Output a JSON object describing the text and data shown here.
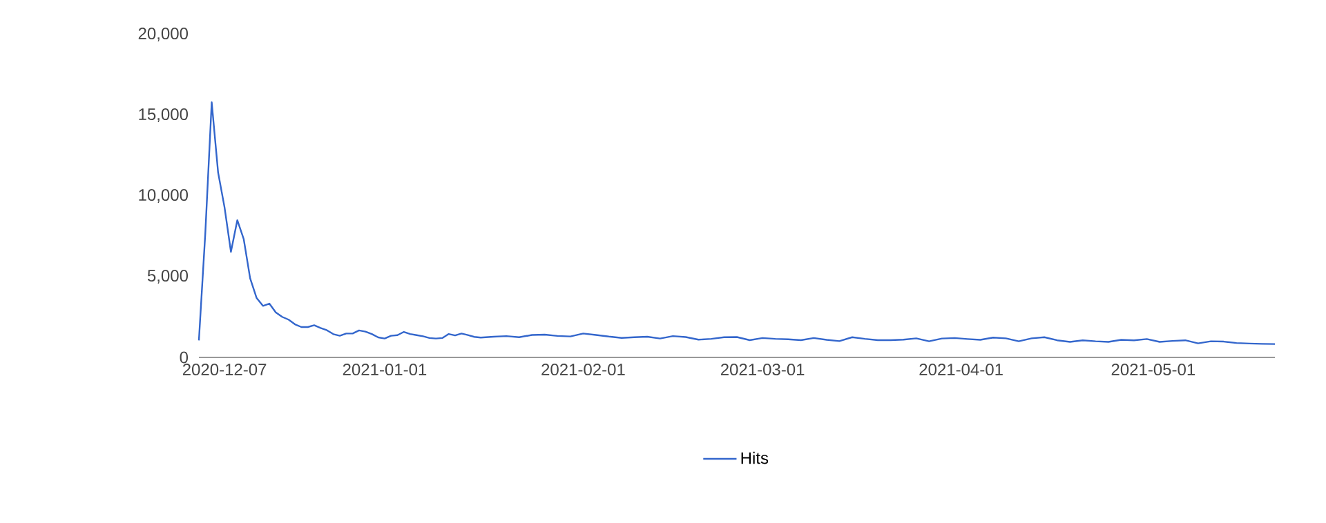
{
  "chart_data": {
    "type": "line",
    "x": [
      "2020-12-03",
      "2020-12-04",
      "2020-12-05",
      "2020-12-06",
      "2020-12-07",
      "2020-12-08",
      "2020-12-09",
      "2020-12-10",
      "2020-12-11",
      "2020-12-12",
      "2020-12-13",
      "2020-12-14",
      "2020-12-15",
      "2020-12-16",
      "2020-12-17",
      "2020-12-18",
      "2020-12-19",
      "2020-12-20",
      "2020-12-21",
      "2020-12-22",
      "2020-12-23",
      "2020-12-24",
      "2020-12-25",
      "2020-12-26",
      "2020-12-27",
      "2020-12-28",
      "2020-12-29",
      "2020-12-30",
      "2020-12-31",
      "2021-01-01",
      "2021-01-02",
      "2021-01-03",
      "2021-01-04",
      "2021-01-05",
      "2021-01-06",
      "2021-01-07",
      "2021-01-08",
      "2021-01-09",
      "2021-01-10",
      "2021-01-11",
      "2021-01-12",
      "2021-01-13",
      "2021-01-14",
      "2021-01-15",
      "2021-01-16",
      "2021-01-18",
      "2021-01-20",
      "2021-01-22",
      "2021-01-24",
      "2021-01-26",
      "2021-01-28",
      "2021-01-30",
      "2021-02-01",
      "2021-02-03",
      "2021-02-05",
      "2021-02-07",
      "2021-02-09",
      "2021-02-11",
      "2021-02-13",
      "2021-02-15",
      "2021-02-17",
      "2021-02-19",
      "2021-02-21",
      "2021-02-23",
      "2021-02-25",
      "2021-02-27",
      "2021-03-01",
      "2021-03-03",
      "2021-03-05",
      "2021-03-07",
      "2021-03-09",
      "2021-03-11",
      "2021-03-13",
      "2021-03-15",
      "2021-03-17",
      "2021-03-19",
      "2021-03-21",
      "2021-03-23",
      "2021-03-25",
      "2021-03-27",
      "2021-03-29",
      "2021-03-31",
      "2021-04-02",
      "2021-04-04",
      "2021-04-06",
      "2021-04-08",
      "2021-04-10",
      "2021-04-12",
      "2021-04-14",
      "2021-04-16",
      "2021-04-18",
      "2021-04-20",
      "2021-04-22",
      "2021-04-24",
      "2021-04-26",
      "2021-04-28",
      "2021-04-30",
      "2021-05-02",
      "2021-05-04",
      "2021-05-06",
      "2021-05-08",
      "2021-05-10",
      "2021-05-12",
      "2021-05-14",
      "2021-05-16",
      "2021-05-18",
      "2021-05-20"
    ],
    "series": [
      {
        "name": "Hits",
        "color": "#3366cc",
        "values": [
          1050,
          7700,
          15800,
          11450,
          9300,
          6540,
          8500,
          7320,
          4900,
          3690,
          3190,
          3330,
          2790,
          2510,
          2340,
          2050,
          1880,
          1880,
          1990,
          1820,
          1680,
          1440,
          1340,
          1480,
          1480,
          1670,
          1600,
          1450,
          1240,
          1170,
          1340,
          1380,
          1580,
          1450,
          1380,
          1310,
          1200,
          1170,
          1200,
          1450,
          1360,
          1480,
          1380,
          1270,
          1230,
          1280,
          1320,
          1250,
          1390,
          1410,
          1330,
          1300,
          1480,
          1390,
          1290,
          1210,
          1250,
          1280,
          1170,
          1320,
          1260,
          1100,
          1150,
          1250,
          1260,
          1070,
          1200,
          1150,
          1120,
          1070,
          1200,
          1090,
          1010,
          1250,
          1150,
          1070,
          1070,
          1100,
          1180,
          1000,
          1170,
          1200,
          1140,
          1090,
          1230,
          1180,
          1000,
          1180,
          1250,
          1060,
          960,
          1060,
          1000,
          960,
          1090,
          1060,
          1140,
          960,
          1020,
          1060,
          870,
          1000,
          980,
          890,
          860,
          840,
          830
        ]
      }
    ],
    "xlim": [
      "2020-12-03",
      "2021-05-20"
    ],
    "xticks": [
      "2020-12-07",
      "2021-01-01",
      "2021-02-01",
      "2021-03-01",
      "2021-04-01",
      "2021-05-01"
    ],
    "ylim": [
      0,
      20000
    ],
    "yticks": [
      0,
      {
        "value": 5000,
        "label": "5,000"
      },
      {
        "value": 10000,
        "label": "10,000"
      },
      {
        "value": 15000,
        "label": "15,000"
      },
      {
        "value": 20000,
        "label": "20,000"
      }
    ],
    "legend": "bottom"
  }
}
